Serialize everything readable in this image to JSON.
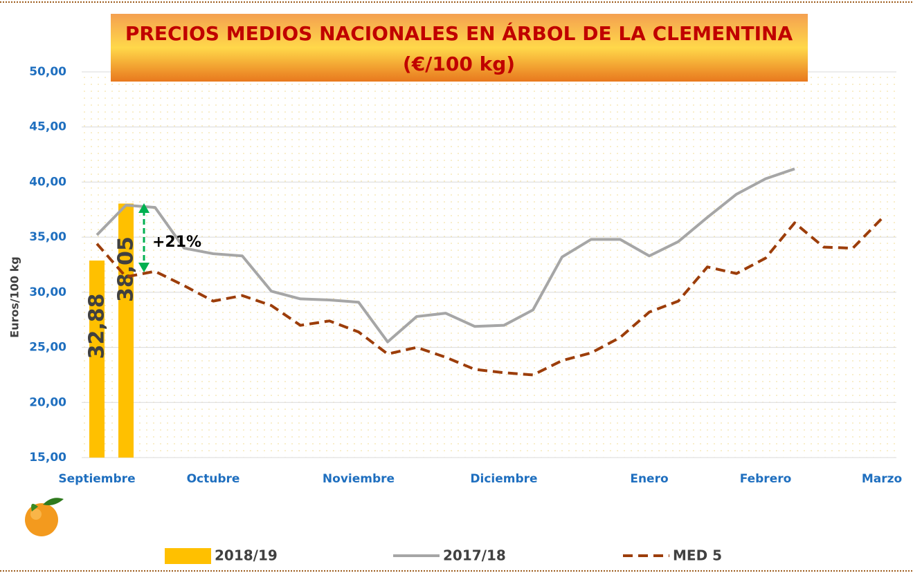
{
  "chart_data": {
    "type": "bar-line",
    "title": "PRECIOS MEDIOS NACIONALES EN ÁRBOL DE LA CLEMENTINA",
    "subtitle": "(€/100 kg)",
    "y_label": "Euros/100 kg",
    "annotation": "+21%",
    "categories": [
      "Septiembre",
      null,
      null,
      null,
      "Octubre",
      null,
      null,
      null,
      null,
      "Noviembre",
      null,
      null,
      null,
      null,
      "Diciembre",
      null,
      null,
      null,
      null,
      "Enero",
      null,
      null,
      null,
      "Febrero",
      null,
      null,
      null,
      "Marzo"
    ],
    "series": [
      {
        "name": "2018/19",
        "type": "bar",
        "color": "#ffc000",
        "values": [
          32.88,
          38.05,
          null,
          null,
          null,
          null,
          null,
          null,
          null,
          null,
          null,
          null,
          null,
          null,
          null,
          null,
          null,
          null,
          null,
          null,
          null,
          null,
          null,
          null,
          null,
          null,
          null,
          null
        ],
        "value_labels": [
          "32,88",
          "38,05",
          null,
          null,
          null,
          null,
          null,
          null,
          null,
          null,
          null,
          null,
          null,
          null,
          null,
          null,
          null,
          null,
          null,
          null,
          null,
          null,
          null,
          null,
          null,
          null,
          null,
          null
        ]
      },
      {
        "name": "2017/18",
        "type": "line",
        "color": "#a6a6a6",
        "values": [
          35.2,
          37.9,
          37.7,
          34.0,
          33.5,
          33.3,
          30.1,
          29.4,
          29.3,
          29.1,
          25.5,
          27.8,
          28.1,
          26.9,
          27.0,
          28.4,
          33.2,
          34.8,
          34.8,
          33.3,
          34.6,
          36.8,
          38.9,
          40.3,
          41.2,
          null,
          null,
          null
        ]
      },
      {
        "name": "MED 5",
        "type": "dashed",
        "color": "#9c3d0a",
        "values": [
          34.4,
          31.4,
          31.9,
          30.6,
          29.2,
          29.7,
          28.8,
          27.0,
          27.4,
          26.4,
          24.4,
          25.0,
          24.1,
          23.0,
          22.7,
          22.5,
          23.8,
          24.5,
          25.9,
          28.2,
          29.2,
          32.3,
          31.7,
          33.1,
          36.3,
          34.1,
          34.0,
          36.7
        ]
      }
    ],
    "ylim": [
      15,
      50
    ],
    "yticks": [
      {
        "value": 15,
        "label": "15,00"
      },
      {
        "value": 20,
        "label": "20,00"
      },
      {
        "value": 25,
        "label": "25,00"
      },
      {
        "value": 30,
        "label": "30,00"
      },
      {
        "value": 35,
        "label": "35,00"
      },
      {
        "value": 40,
        "label": "40,00"
      },
      {
        "value": 45,
        "label": "45,00"
      },
      {
        "value": 50,
        "label": "50,00"
      }
    ],
    "grid": true
  }
}
